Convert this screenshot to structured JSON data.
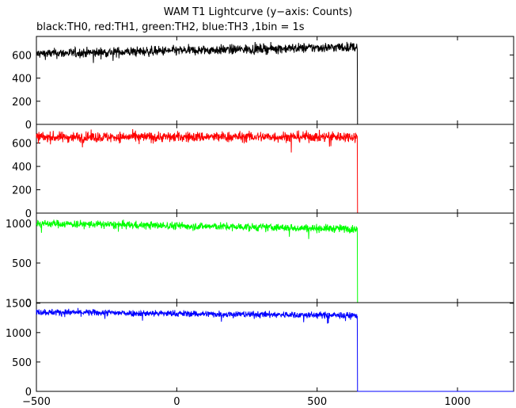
{
  "chart_data": {
    "type": "line",
    "title": "WAM T1 Lightcurve (y−axis: Counts)",
    "subtitle": "black:TH0, red:TH1, green:TH2, blue:TH3 ,1bin = 1s",
    "ylabel": "Counts",
    "x_range": [
      -500,
      1200
    ],
    "x_ticks": [
      -500,
      0,
      500,
      1000
    ],
    "x_tick_labels": [
      "−500",
      "0",
      "500",
      "1000"
    ],
    "grid": false,
    "panels": [
      {
        "name": "TH0",
        "color": "#000000",
        "ylim": [
          0,
          760
        ],
        "y_ticks": [
          0,
          200,
          400,
          600
        ],
        "pre_drop_start": 610,
        "pre_drop_end": 670,
        "noise": 30,
        "drop_x": 643,
        "post_level": 0
      },
      {
        "name": "TH1",
        "color": "#ff0000",
        "ylim": [
          0,
          760
        ],
        "y_ticks": [
          0,
          200,
          400,
          600
        ],
        "pre_drop_start": 650,
        "pre_drop_end": 655,
        "noise": 32,
        "drop_x": 643,
        "post_level": 0
      },
      {
        "name": "TH2",
        "color": "#00ff00",
        "ylim": [
          0,
          1130
        ],
        "y_ticks": [
          0,
          500,
          1000
        ],
        "pre_drop_start": 1000,
        "pre_drop_end": 930,
        "noise": 35,
        "drop_x": 643,
        "post_level": 0
      },
      {
        "name": "TH3",
        "color": "#0000ff",
        "ylim": [
          0,
          1510
        ],
        "y_ticks": [
          0,
          500,
          1000,
          1500
        ],
        "pre_drop_start": 1350,
        "pre_drop_end": 1290,
        "noise": 40,
        "drop_x": 643,
        "post_level": 0
      }
    ]
  }
}
